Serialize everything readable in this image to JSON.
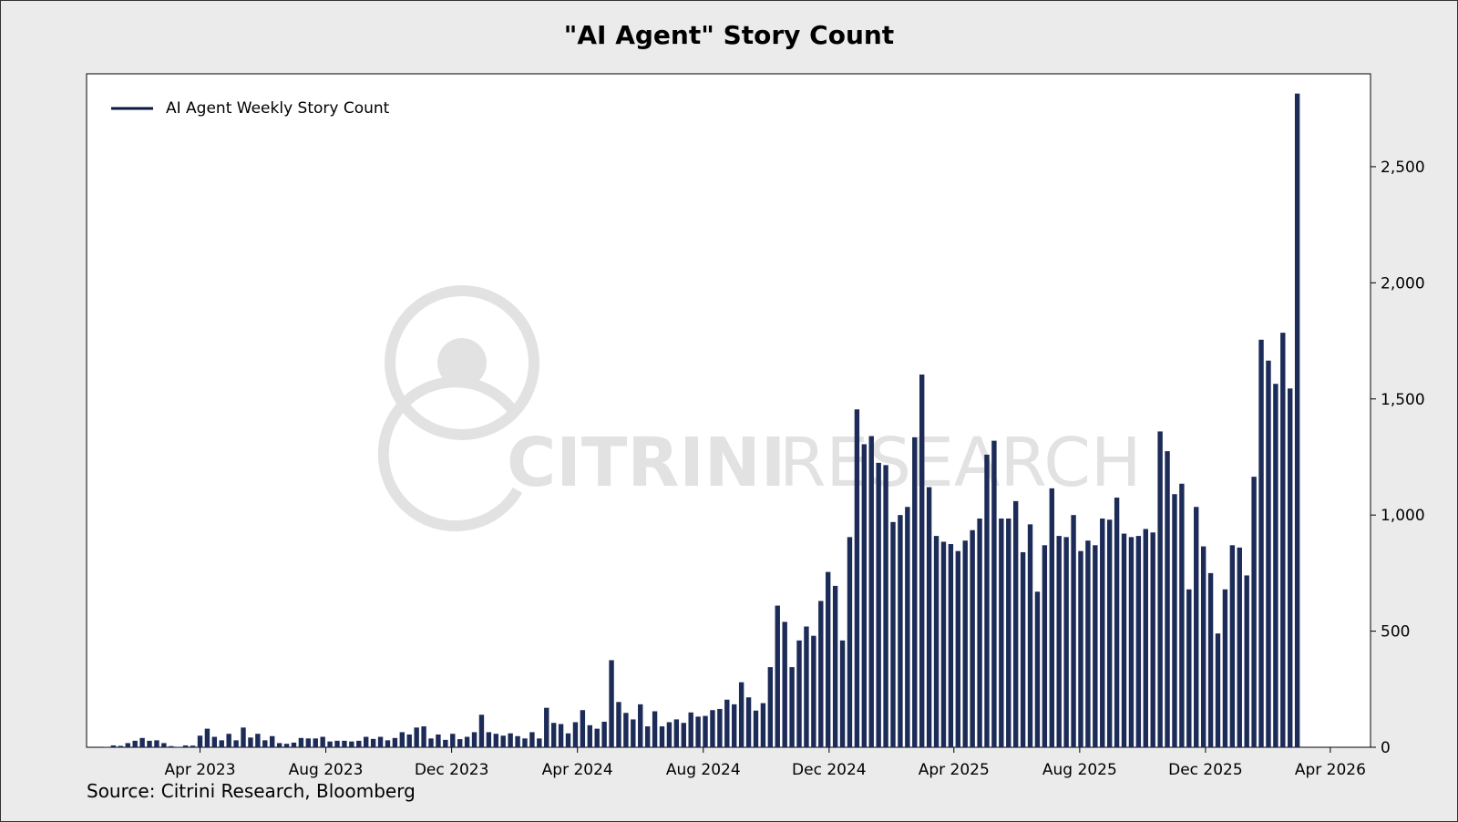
{
  "source": "Source: Citrini Research, Bloomberg",
  "watermark": {
    "text_bold": "CITRINI",
    "text_light": "RESEARCH",
    "color": "#e2e2e2"
  },
  "colors": {
    "bar": "#1c2b57",
    "legend_line": "#0d1840",
    "background": "#ebebeb",
    "plot_background": "#ffffff"
  },
  "chart_data": {
    "type": "bar",
    "title": "\"AI Agent\" Story Count",
    "xlabel": "",
    "ylabel": "",
    "y_axis_side": "right",
    "ylim": [
      0,
      2900
    ],
    "yticks": [
      0,
      500,
      1000,
      1500,
      2000,
      2500
    ],
    "ytick_labels": [
      "0",
      "500",
      "1,000",
      "1,500",
      "2,000",
      "2,500"
    ],
    "xlim": [
      "2022-12-12",
      "2026-05-10"
    ],
    "xticks": [
      "2023-04-01",
      "2023-08-01",
      "2023-12-01",
      "2024-04-01",
      "2024-08-01",
      "2024-12-01",
      "2025-04-01",
      "2025-08-01",
      "2025-12-01",
      "2026-04-01"
    ],
    "xtick_labels": [
      "Apr 2023",
      "Aug 2023",
      "Dec 2023",
      "Apr 2024",
      "Aug 2024",
      "Dec 2024",
      "Apr 2025",
      "Aug 2025",
      "Dec 2025",
      "Apr 2026"
    ],
    "grid": false,
    "legend_position": "top-left",
    "series": [
      {
        "name": "AI Agent Weekly Story Count",
        "x_start": "2022-12-31",
        "x_step": "weekly",
        "values": [
          2,
          8,
          6,
          18,
          28,
          40,
          28,
          30,
          18,
          5,
          2,
          8,
          7,
          50,
          80,
          45,
          30,
          58,
          30,
          85,
          42,
          58,
          30,
          48,
          18,
          15,
          20,
          40,
          38,
          38,
          45,
          25,
          28,
          28,
          25,
          28,
          45,
          36,
          45,
          30,
          40,
          65,
          55,
          85,
          90,
          38,
          55,
          32,
          58,
          35,
          45,
          65,
          140,
          65,
          58,
          50,
          60,
          48,
          38,
          65,
          38,
          170,
          105,
          100,
          60,
          108,
          160,
          95,
          80,
          110,
          375,
          195,
          148,
          120,
          185,
          90,
          155,
          90,
          108,
          120,
          105,
          150,
          132,
          135,
          160,
          165,
          205,
          185,
          280,
          215,
          158,
          190,
          345,
          610,
          540,
          345,
          460,
          520,
          480,
          630,
          755,
          695,
          460,
          905,
          1455,
          1305,
          1340,
          1225,
          1215,
          970,
          1000,
          1035,
          1335,
          1605,
          1120,
          910,
          885,
          875,
          845,
          890,
          935,
          985,
          1260,
          1320,
          985,
          985,
          1060,
          840,
          960,
          670,
          870,
          1115,
          910,
          905,
          1000,
          845,
          890,
          870,
          985,
          980,
          1075,
          920,
          905,
          910,
          940,
          925,
          1360,
          1275,
          1090,
          1135,
          680,
          1035,
          865,
          750,
          490,
          680,
          870,
          860,
          740,
          1165,
          1755,
          1665,
          1565,
          1785,
          1545,
          2815
        ]
      }
    ]
  }
}
